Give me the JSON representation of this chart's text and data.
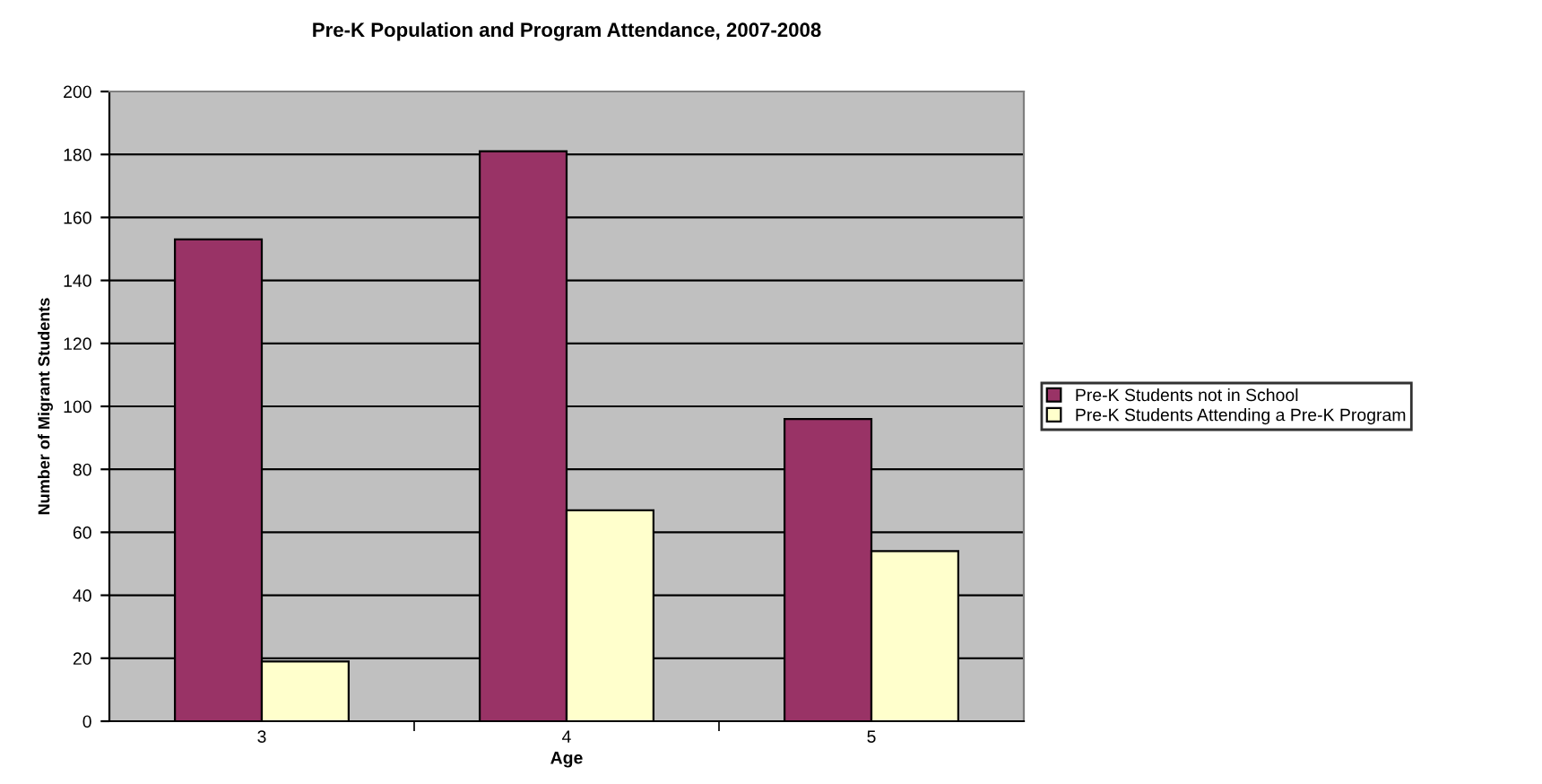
{
  "chart_data": {
    "type": "bar",
    "title": "Pre-K Population and Program Attendance, 2007-2008",
    "xlabel": "Age",
    "ylabel": "Number of Migrant Students",
    "categories": [
      "3",
      "4",
      "5"
    ],
    "series": [
      {
        "name": "Pre-K Students not in School",
        "color": "#993366",
        "values": [
          153,
          181,
          96
        ]
      },
      {
        "name": "Pre-K Students Attending a Pre-K Program",
        "color": "#ffffcc",
        "values": [
          19,
          67,
          54
        ]
      }
    ],
    "ylim": [
      0,
      200
    ],
    "yticks": [
      0,
      20,
      40,
      60,
      80,
      100,
      120,
      140,
      160,
      180,
      200
    ],
    "grid": "y",
    "legend": "right"
  }
}
